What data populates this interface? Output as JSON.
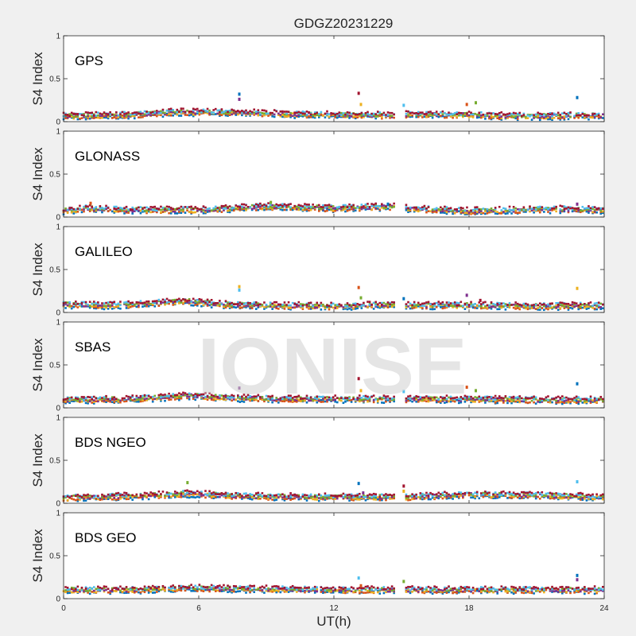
{
  "chart_data": {
    "type": "scatter",
    "title": "GDGZ20231229",
    "xlabel": "UT(h)",
    "ylabel": "S4 Index",
    "xlim": [
      0,
      24
    ],
    "ylim": [
      0,
      1
    ],
    "xticks": [
      0,
      6,
      12,
      18,
      24
    ],
    "yticks": [
      0,
      0.5,
      1
    ],
    "xtick_labels": [
      "0",
      "6",
      "12",
      "18",
      "24"
    ],
    "ytick_labels": [
      "0",
      "0.5",
      "1"
    ],
    "data_gap": [
      14.7,
      15.2
    ],
    "watermark": "IONISE",
    "grid": false,
    "colors": [
      "#0072BD",
      "#D95319",
      "#EDB120",
      "#7E2F8E",
      "#77AC30",
      "#4DBEEE",
      "#A2142F"
    ],
    "panels": [
      {
        "label": "GPS",
        "series_profile": [
          [
            0,
            0.06
          ],
          [
            3,
            0.08
          ],
          [
            5,
            0.11
          ],
          [
            8,
            0.1
          ],
          [
            11,
            0.08
          ],
          [
            14.7,
            0.07
          ],
          [
            15.2,
            0.08
          ],
          [
            18,
            0.08
          ],
          [
            20,
            0.06
          ],
          [
            24,
            0.07
          ]
        ],
        "outliers": [
          [
            7.8,
            0.32
          ],
          [
            7.8,
            0.26
          ],
          [
            13.1,
            0.33
          ],
          [
            13.2,
            0.2
          ],
          [
            15.1,
            0.19
          ],
          [
            17.9,
            0.2
          ],
          [
            18.3,
            0.22
          ],
          [
            22.8,
            0.28
          ]
        ]
      },
      {
        "label": "GLONASS",
        "series_profile": [
          [
            0,
            0.07
          ],
          [
            1,
            0.1
          ],
          [
            3,
            0.08
          ],
          [
            6,
            0.08
          ],
          [
            9,
            0.12
          ],
          [
            12,
            0.1
          ],
          [
            14.7,
            0.12
          ],
          [
            15.2,
            0.1
          ],
          [
            18,
            0.07
          ],
          [
            22,
            0.09
          ],
          [
            24,
            0.08
          ]
        ],
        "outliers": [
          [
            1.2,
            0.16
          ],
          [
            9.2,
            0.17
          ],
          [
            14.4,
            0.15
          ],
          [
            22.8,
            0.15
          ]
        ]
      },
      {
        "label": "GALILEO",
        "series_profile": [
          [
            0,
            0.09
          ],
          [
            2,
            0.08
          ],
          [
            5.5,
            0.13
          ],
          [
            7,
            0.09
          ],
          [
            9,
            0.08
          ],
          [
            12,
            0.07
          ],
          [
            14.7,
            0.09
          ],
          [
            15.2,
            0.08
          ],
          [
            18,
            0.08
          ],
          [
            21,
            0.07
          ],
          [
            24,
            0.08
          ]
        ],
        "outliers": [
          [
            7.8,
            0.3
          ],
          [
            7.8,
            0.26
          ],
          [
            13.1,
            0.29
          ],
          [
            13.2,
            0.17
          ],
          [
            15.1,
            0.16
          ],
          [
            17.9,
            0.2
          ],
          [
            18.5,
            0.14
          ],
          [
            22.8,
            0.28
          ]
        ]
      },
      {
        "label": "SBAS",
        "series_profile": [
          [
            0,
            0.09
          ],
          [
            3,
            0.1
          ],
          [
            5.5,
            0.14
          ],
          [
            8,
            0.11
          ],
          [
            11,
            0.1
          ],
          [
            14.7,
            0.1
          ],
          [
            15.2,
            0.1
          ],
          [
            18,
            0.1
          ],
          [
            21,
            0.09
          ],
          [
            24,
            0.09
          ]
        ],
        "outliers": [
          [
            7.8,
            0.23
          ],
          [
            13.1,
            0.34
          ],
          [
            13.2,
            0.2
          ],
          [
            15.1,
            0.19
          ],
          [
            17.9,
            0.24
          ],
          [
            18.3,
            0.2
          ],
          [
            22.8,
            0.28
          ]
        ]
      },
      {
        "label": "BDS NGEO",
        "series_profile": [
          [
            0,
            0.06
          ],
          [
            3,
            0.08
          ],
          [
            5.5,
            0.11
          ],
          [
            8,
            0.08
          ],
          [
            11,
            0.07
          ],
          [
            14.7,
            0.07
          ],
          [
            15.2,
            0.07
          ],
          [
            18,
            0.1
          ],
          [
            21,
            0.09
          ],
          [
            24,
            0.07
          ]
        ],
        "outliers": [
          [
            5.5,
            0.24
          ],
          [
            13.1,
            0.23
          ],
          [
            13.3,
            0.12
          ],
          [
            15.1,
            0.2
          ],
          [
            15.1,
            0.14
          ],
          [
            22.8,
            0.25
          ]
        ]
      },
      {
        "label": "BDS GEO",
        "series_profile": [
          [
            0,
            0.1
          ],
          [
            3,
            0.1
          ],
          [
            5.5,
            0.12
          ],
          [
            9,
            0.11
          ],
          [
            12,
            0.1
          ],
          [
            14.7,
            0.1
          ],
          [
            15.2,
            0.1
          ],
          [
            18,
            0.1
          ],
          [
            21,
            0.1
          ],
          [
            24,
            0.1
          ]
        ],
        "outliers": [
          [
            13.1,
            0.24
          ],
          [
            13.2,
            0.15
          ],
          [
            15.1,
            0.2
          ],
          [
            22.8,
            0.27
          ],
          [
            22.8,
            0.22
          ]
        ]
      }
    ]
  }
}
